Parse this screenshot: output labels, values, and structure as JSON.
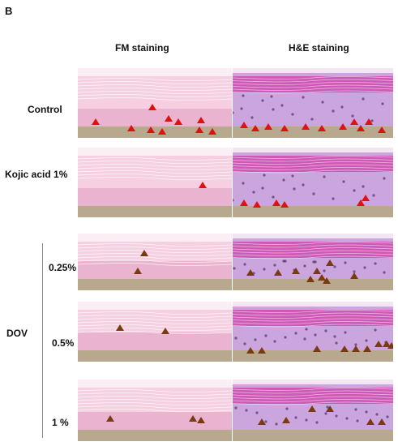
{
  "figure": {
    "panel_letter": "B",
    "columns": [
      "FM staining",
      "H&E staining"
    ],
    "rows": [
      {
        "label": "Control",
        "group": ""
      },
      {
        "label": "Kojic acid 1%",
        "group": ""
      },
      {
        "label": "0.25%",
        "group": "DOV"
      },
      {
        "label": "0.5%",
        "group": "DOV"
      },
      {
        "label": "1 %",
        "group": "DOV"
      }
    ],
    "group_label": "DOV",
    "colors": {
      "fm_stain": "#f2b8d0",
      "he_stain": "#b07ad0",
      "he_keratin": "#d040a8",
      "substrate": "#b8a88e",
      "marker_red": "#e01010",
      "marker_brown": "#7a3a10"
    }
  }
}
